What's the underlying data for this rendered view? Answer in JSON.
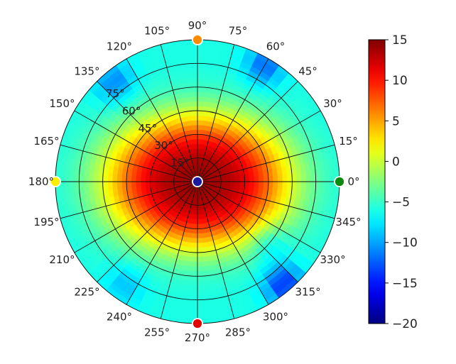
{
  "chart_data": {
    "type": "heatmap",
    "projection": "polar",
    "theta_ticks": [
      "0°",
      "15°",
      "30°",
      "45°",
      "60°",
      "75°",
      "90°",
      "105°",
      "120°",
      "135°",
      "150°",
      "165°",
      "180°",
      "195°",
      "210°",
      "225°",
      "240°",
      "255°",
      "270°",
      "285°",
      "300°",
      "315°",
      "330°",
      "345°"
    ],
    "theta_ticks_deg": [
      0,
      15,
      30,
      45,
      60,
      75,
      90,
      105,
      120,
      135,
      150,
      165,
      180,
      195,
      210,
      225,
      240,
      255,
      270,
      285,
      300,
      315,
      330,
      345
    ],
    "r_ticks": [
      "15°",
      "30°",
      "45°",
      "60°",
      "75°"
    ],
    "r_ticks_deg": [
      15,
      30,
      45,
      60,
      75
    ],
    "r_range": [
      0,
      90
    ],
    "colorbar": {
      "min": -20,
      "max": 15,
      "ticks": [
        15,
        10,
        5,
        0,
        -5,
        -10,
        -15,
        -20
      ],
      "tick_labels": [
        "15",
        "10",
        "5",
        "0",
        "−5",
        "−10",
        "−15",
        "−20"
      ],
      "colormap": "jet"
    },
    "field": {
      "peak_value": 14,
      "edge_value": -6,
      "description_free": true,
      "lobe_axes_deg": [
        48,
        35
      ],
      "cold_spots": [
        {
          "theta": 130,
          "r": 82,
          "value": -11
        },
        {
          "theta": 60,
          "r": 85,
          "value": -12
        },
        {
          "theta": 310,
          "r": 85,
          "value": -14
        },
        {
          "theta": 235,
          "r": 80,
          "value": -9
        },
        {
          "theta": 320,
          "r": 60,
          "value": -9
        }
      ]
    },
    "markers": [
      {
        "theta": 0,
        "r": 90,
        "color": "#0a8a0a"
      },
      {
        "theta": 90,
        "r": 90,
        "color": "#ff8c00"
      },
      {
        "theta": 180,
        "r": 90,
        "color": "#ffee00"
      },
      {
        "theta": 270,
        "r": 90,
        "color": "#e00000"
      },
      {
        "theta": 0,
        "r": 0,
        "color": "#1a1aa0"
      }
    ],
    "grid": true
  }
}
